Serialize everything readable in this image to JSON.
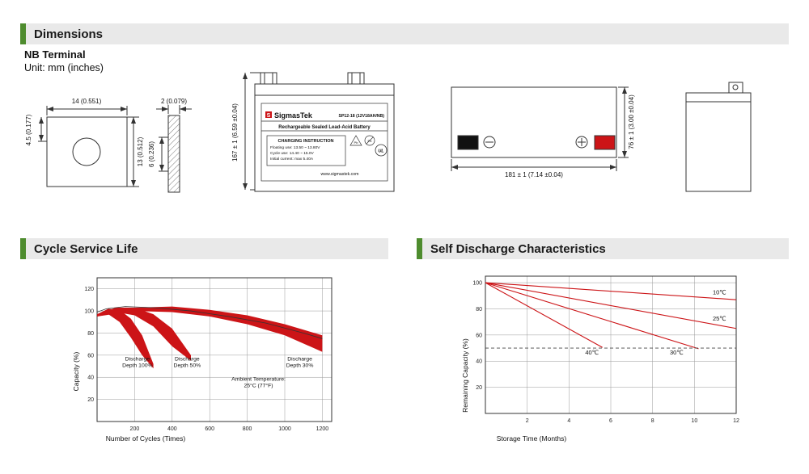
{
  "page": {
    "background": "#ffffff",
    "accent_green": "#4e8c2e",
    "header_bg": "#e9e9e9",
    "red": "#cc1417"
  },
  "headers": {
    "dimensions": "Dimensions",
    "cycle_service_life": "Cycle Service Life",
    "self_discharge": "Self Discharge Characteristics"
  },
  "terminal_info": {
    "title": "NB Terminal",
    "unit": "Unit: mm (inches)"
  },
  "drawings": {
    "terminal_front": {
      "width": "14 (0.551)",
      "offset": "4.5 (0.177)",
      "height": "13 (0.512)"
    },
    "terminal_side": {
      "thickness": "2 (0.079)",
      "height": "6 (0.236)"
    },
    "front_view": {
      "height": "167 ± 1 (6.59 ±0.04)",
      "logo_letter": "S",
      "brand": "SigmasTek",
      "model": "SP12-18 (12V18AH/NB)",
      "battery_type": "Rechargeable Sealed Lead-Acid Battery",
      "charging_title": "CHARGING INSTRUCTION",
      "charging_line1": "Floating use: 13.50 ~ 13.80V",
      "charging_line2": "Cycle use: 14.40 ~ 15.0V",
      "charging_line3": "Initial current: max 5.40A",
      "pb_label": "Pb",
      "ul_label": "UL",
      "website": "www.sigmastek.com"
    },
    "top_view": {
      "width": "181 ± 1 (7.14 ±0.04)",
      "depth": "76 ± 1 (3.00 ±0.04)"
    }
  },
  "chart_data": [
    {
      "id": "cycle_service_life",
      "type": "area",
      "title": "Cycle Service Life",
      "xlabel": "Number of Cycles (Times)",
      "ylabel": "Capacity (%)",
      "xlim": [
        0,
        1250
      ],
      "ylim": [
        0,
        130
      ],
      "xticks": [
        200,
        400,
        600,
        800,
        1000,
        1200
      ],
      "yticks": [
        20,
        40,
        60,
        80,
        100,
        120
      ],
      "grid": true,
      "bands": [
        {
          "name": "Discharge Depth 100%",
          "x": [
            0,
            60,
            120,
            180,
            240,
            300
          ],
          "upper": [
            97,
            102,
            101,
            93,
            78,
            52
          ],
          "lower": [
            95,
            97,
            90,
            76,
            60,
            48
          ]
        },
        {
          "name": "Discharge Depth 50%",
          "x": [
            0,
            100,
            200,
            300,
            400,
            500
          ],
          "upper": [
            97,
            103,
            103,
            97,
            84,
            60
          ],
          "lower": [
            95,
            99,
            96,
            86,
            68,
            55
          ]
        },
        {
          "name": "Discharge Depth 30%",
          "x": [
            0,
            200,
            400,
            600,
            800,
            1000,
            1200
          ],
          "upper": [
            97,
            103,
            104,
            101,
            96,
            88,
            78
          ],
          "lower": [
            95,
            100,
            99,
            95,
            88,
            78,
            63
          ]
        }
      ],
      "curve": {
        "name": "capacity envelope",
        "x": [
          0,
          50,
          150,
          300,
          500,
          700,
          900,
          1100,
          1200
        ],
        "y": [
          99,
          102,
          104,
          103,
          100,
          95,
          89,
          80,
          75
        ]
      },
      "annotations": [
        {
          "text": "Discharge\nDepth 100%",
          "x": 215,
          "y": 55
        },
        {
          "text": "Discharge\nDepth 50%",
          "x": 480,
          "y": 55
        },
        {
          "text": "Discharge\nDepth 30%",
          "x": 1080,
          "y": 55
        },
        {
          "text": "Ambient Temperature:\n25°C (77°F)",
          "x": 860,
          "y": 37
        }
      ]
    },
    {
      "id": "self_discharge",
      "type": "line",
      "title": "Self Discharge Characteristics",
      "xlabel": "Storage Time (Months)",
      "ylabel": "Remaining Capacity (%)",
      "xlim": [
        0,
        12
      ],
      "ylim": [
        0,
        105
      ],
      "xticks": [
        2,
        4,
        6,
        8,
        10,
        12
      ],
      "yticks": [
        20,
        40,
        60,
        80,
        100
      ],
      "grid": true,
      "series": [
        {
          "name": "10℃",
          "x": [
            0,
            12
          ],
          "y": [
            100,
            87
          ],
          "label_x": 11.2,
          "label_y": 91
        },
        {
          "name": "25℃",
          "x": [
            0,
            12
          ],
          "y": [
            100,
            65
          ],
          "label_x": 11.2,
          "label_y": 71
        },
        {
          "name": "30℃",
          "x": [
            0,
            10.2
          ],
          "y": [
            100,
            49.5
          ],
          "label_x": 9.15,
          "label_y": 45
        },
        {
          "name": "40℃",
          "x": [
            0,
            5.6
          ],
          "y": [
            100,
            50.5
          ],
          "label_x": 5.1,
          "label_y": 45
        }
      ],
      "reference_line": {
        "y": 50,
        "style": "dashed"
      }
    }
  ]
}
